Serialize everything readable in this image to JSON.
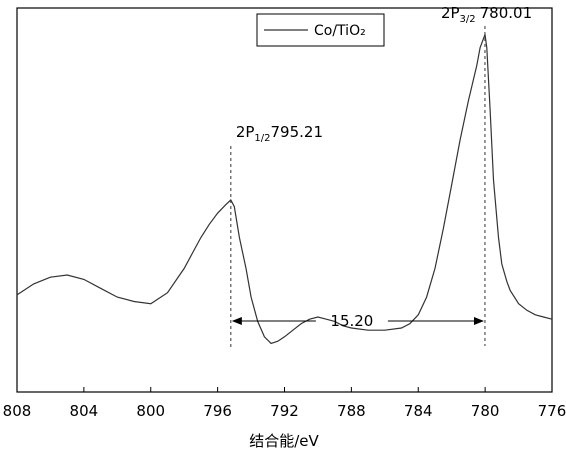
{
  "chart_data": {
    "type": "line",
    "title": "",
    "xlabel": "结合能/eV",
    "ylabel": "",
    "xlim": [
      808,
      776
    ],
    "x_reversed": true,
    "yaxis_ticks": false,
    "grid": false,
    "legend": {
      "position": "top-center",
      "entries": [
        "Co/TiO₂"
      ]
    },
    "x_ticks": [
      "808",
      "804",
      "800",
      "796",
      "792",
      "788",
      "784",
      "780",
      "776"
    ],
    "x_tick_values": [
      808,
      804,
      800,
      796,
      792,
      788,
      784,
      780,
      776
    ],
    "series": [
      {
        "name": "Co/TiO₂",
        "color": "#333333",
        "x": [
          808,
          807,
          806,
          805,
          804,
          803,
          802,
          801,
          800,
          799,
          798,
          797.5,
          797,
          796.5,
          796,
          795.5,
          795.21,
          795,
          794.7,
          794.3,
          794,
          793.6,
          793.2,
          792.8,
          792.4,
          792,
          791.5,
          791,
          790.5,
          790,
          789.5,
          789,
          788.5,
          788,
          787,
          786,
          785,
          784.5,
          784,
          783.5,
          783,
          782.5,
          782,
          781.5,
          781,
          780.5,
          780.3,
          780.01,
          779.9,
          779.7,
          779.5,
          779.2,
          779,
          778.7,
          778.5,
          778,
          777.5,
          777,
          776.5,
          776
        ],
        "y": [
          0.26,
          0.31,
          0.34,
          0.35,
          0.33,
          0.29,
          0.25,
          0.23,
          0.22,
          0.27,
          0.38,
          0.45,
          0.52,
          0.58,
          0.63,
          0.67,
          0.69,
          0.66,
          0.52,
          0.38,
          0.25,
          0.14,
          0.07,
          0.04,
          0.05,
          0.07,
          0.1,
          0.13,
          0.15,
          0.16,
          0.15,
          0.14,
          0.12,
          0.11,
          0.1,
          0.1,
          0.11,
          0.13,
          0.17,
          0.25,
          0.38,
          0.56,
          0.76,
          0.96,
          1.14,
          1.3,
          1.38,
          1.44,
          1.38,
          1.1,
          0.78,
          0.52,
          0.4,
          0.32,
          0.28,
          0.22,
          0.19,
          0.17,
          0.16,
          0.15
        ]
      }
    ],
    "ylim": [
      -0.18,
      1.56
    ],
    "annotations": [
      {
        "x": 795.21,
        "main": "2P",
        "sub": "1/2",
        "value": "795.21"
      },
      {
        "x": 780.01,
        "main": "2P",
        "sub": "3/2",
        "value": "780.01"
      }
    ],
    "separation_label": "15.20"
  }
}
